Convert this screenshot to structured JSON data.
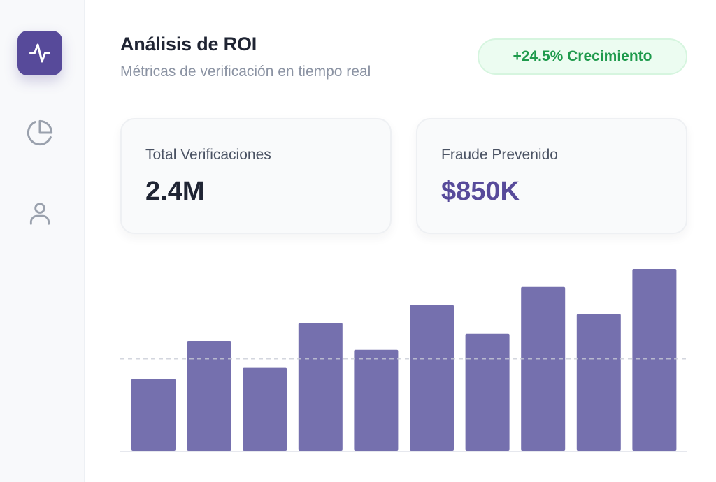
{
  "header": {
    "title": "Análisis de ROI",
    "subtitle": "Métricas de verificación en tiempo real",
    "badge": "+24.5% Crecimiento"
  },
  "sidebar": {
    "items": [
      {
        "icon": "activity-icon",
        "active": true
      },
      {
        "icon": "pie-chart-icon",
        "active": false
      },
      {
        "icon": "user-icon",
        "active": false
      }
    ]
  },
  "stats": [
    {
      "label": "Total Verificaciones",
      "value": "2.4M"
    },
    {
      "label": "Fraude Prevenido",
      "value": "$850K"
    }
  ],
  "colors": {
    "accent": "#574a9a",
    "bar": "#7570ae",
    "badge_text": "#1e9a4c",
    "badge_bg": "#ecfcf1"
  },
  "chart_data": {
    "type": "bar",
    "categories": [
      "",
      "",
      "",
      "",
      "",
      "",
      "",
      "",
      "",
      ""
    ],
    "values": [
      40,
      61,
      46,
      71,
      56,
      81,
      65,
      91,
      76,
      101
    ],
    "reference_line": 51,
    "ylim": [
      0,
      101
    ],
    "grid": false
  }
}
